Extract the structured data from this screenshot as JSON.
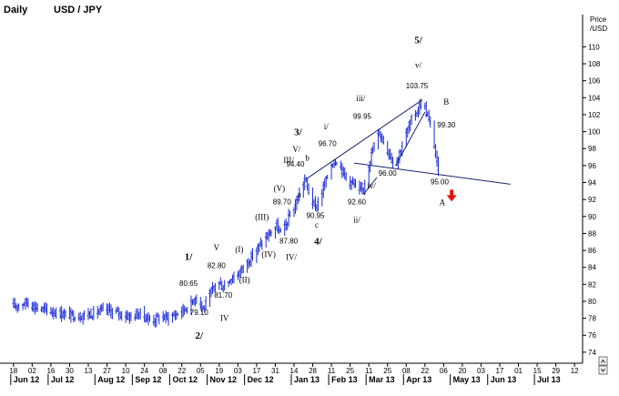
{
  "header": {
    "period": "Daily",
    "symbol": "USD / JPY"
  },
  "chart_data": {
    "type": "ohlc",
    "title": "USD / JPY",
    "period": "Daily",
    "ylabel_lines": [
      "Price",
      "/USD"
    ],
    "ylim": [
      72.7,
      113.8
    ],
    "yticks": [
      74,
      76,
      78,
      80,
      82,
      84,
      86,
      88,
      90,
      92,
      94,
      96,
      98,
      100,
      102,
      104,
      106,
      108,
      110
    ],
    "grid": false,
    "x_day_ticks": [
      {
        "label": "18",
        "day": 0
      },
      {
        "label": "02",
        "day": 14
      },
      {
        "label": "16",
        "day": 28
      },
      {
        "label": "30",
        "day": 42
      },
      {
        "label": "13",
        "day": 56
      },
      {
        "label": "27",
        "day": 70
      },
      {
        "label": "10",
        "day": 84
      },
      {
        "label": "24",
        "day": 98
      },
      {
        "label": "08",
        "day": 112
      },
      {
        "label": "22",
        "day": 126
      },
      {
        "label": "05",
        "day": 140
      },
      {
        "label": "19",
        "day": 154
      },
      {
        "label": "03",
        "day": 168
      },
      {
        "label": "17",
        "day": 182
      },
      {
        "label": "31",
        "day": 196
      },
      {
        "label": "14",
        "day": 210
      },
      {
        "label": "28",
        "day": 224
      },
      {
        "label": "11",
        "day": 238
      },
      {
        "label": "25",
        "day": 252
      },
      {
        "label": "11",
        "day": 266
      },
      {
        "label": "25",
        "day": 280
      },
      {
        "label": "08",
        "day": 294
      },
      {
        "label": "22",
        "day": 308
      },
      {
        "label": "06",
        "day": 322
      },
      {
        "label": "20",
        "day": 336
      },
      {
        "label": "03",
        "day": 350
      },
      {
        "label": "17",
        "day": 364
      },
      {
        "label": "01",
        "day": 378
      },
      {
        "label": "15",
        "day": 392
      },
      {
        "label": "29",
        "day": 406
      },
      {
        "label": "12",
        "day": 420
      }
    ],
    "x_month_labels": [
      {
        "label": "Jun 12",
        "day": 0
      },
      {
        "label": "Jul 12",
        "day": 28
      },
      {
        "label": "Aug 12",
        "day": 63
      },
      {
        "label": "Sep 12",
        "day": 91
      },
      {
        "label": "Oct 12",
        "day": 119
      },
      {
        "label": "Nov 12",
        "day": 147
      },
      {
        "label": "Dec 12",
        "day": 175
      },
      {
        "label": "Jan 13",
        "day": 210
      },
      {
        "label": "Feb 13",
        "day": 238
      },
      {
        "label": "Mar 13",
        "day": 266
      },
      {
        "label": "Apr 13",
        "day": 294
      },
      {
        "label": "May 13",
        "day": 329
      },
      {
        "label": "Jun 13",
        "day": 357
      },
      {
        "label": "Jul 13",
        "day": 392
      }
    ],
    "anchors": [
      [
        0,
        79.4
      ],
      [
        10,
        79.9
      ],
      [
        20,
        79.1
      ],
      [
        30,
        78.8
      ],
      [
        40,
        78.4
      ],
      [
        50,
        78.3
      ],
      [
        60,
        78.6
      ],
      [
        70,
        79.0
      ],
      [
        80,
        78.5
      ],
      [
        88,
        78.2
      ],
      [
        95,
        78.6
      ],
      [
        100,
        78.0
      ],
      [
        105,
        77.8
      ],
      [
        110,
        78.2
      ],
      [
        115,
        78.1
      ],
      [
        122,
        78.5
      ],
      [
        127,
        79.0
      ],
      [
        132,
        79.5
      ],
      [
        137,
        80.65
      ],
      [
        142,
        79.1
      ],
      [
        147,
        80.5
      ],
      [
        152,
        82.4
      ],
      [
        157,
        81.7
      ],
      [
        162,
        82.6
      ],
      [
        168,
        83.2
      ],
      [
        174,
        84.4
      ],
      [
        180,
        85.6
      ],
      [
        186,
        86.9
      ],
      [
        192,
        88.0
      ],
      [
        197,
        88.8
      ],
      [
        201,
        87.8
      ],
      [
        206,
        89.8
      ],
      [
        210,
        91.0
      ],
      [
        214,
        92.6
      ],
      [
        218,
        94.4
      ],
      [
        222,
        92.5
      ],
      [
        226,
        90.95
      ],
      [
        230,
        92.5
      ],
      [
        234,
        94.2
      ],
      [
        238,
        96.2
      ],
      [
        242,
        96.7
      ],
      [
        246,
        95.5
      ],
      [
        250,
        94.3
      ],
      [
        255,
        93.8
      ],
      [
        258,
        92.6
      ],
      [
        262,
        93.4
      ],
      [
        266,
        96.2
      ],
      [
        270,
        98.4
      ],
      [
        274,
        99.95
      ],
      [
        278,
        98.5
      ],
      [
        282,
        97.3
      ],
      [
        286,
        96.0
      ],
      [
        290,
        98.0
      ],
      [
        294,
        99.7
      ],
      [
        298,
        101.3
      ],
      [
        302,
        102.4
      ],
      [
        306,
        103.75
      ],
      [
        310,
        101.8
      ],
      [
        314,
        99.6
      ],
      [
        318,
        95.0
      ]
    ],
    "trendlines": [
      {
        "from": [
          219,
          94.4
        ],
        "to": [
          306,
          103.75
        ]
      },
      {
        "from": [
          286,
          96.0
        ],
        "to": [
          308,
          102.3
        ]
      },
      {
        "from": [
          262,
          92.6
        ],
        "to": [
          272,
          94.6
        ]
      },
      {
        "from": [
          255,
          96.3
        ],
        "to": [
          372,
          93.8
        ]
      }
    ],
    "price_labels": [
      {
        "text": "80.65",
        "day": 131,
        "price": 81.8
      },
      {
        "text": "79.10",
        "day": 139,
        "price": 78.4
      },
      {
        "text": "82.80",
        "day": 152,
        "price": 83.9
      },
      {
        "text": "81.70",
        "day": 157,
        "price": 80.4
      },
      {
        "text": "87.80",
        "day": 206,
        "price": 86.8
      },
      {
        "text": "89.70",
        "day": 201,
        "price": 91.4
      },
      {
        "text": "94.40",
        "day": 211,
        "price": 95.9
      },
      {
        "text": "90.95",
        "day": 226,
        "price": 89.8
      },
      {
        "text": "96.70",
        "day": 235,
        "price": 98.3
      },
      {
        "text": "92.60",
        "day": 257,
        "price": 91.4
      },
      {
        "text": "99.95",
        "day": 261,
        "price": 101.5
      },
      {
        "text": "96.00",
        "day": 280,
        "price": 94.8
      },
      {
        "text": "103.75",
        "day": 302,
        "price": 105.1
      },
      {
        "text": "99.30",
        "day": 324,
        "price": 100.5
      },
      {
        "text": "95.00",
        "day": 319,
        "price": 93.8
      }
    ],
    "wave_labels": [
      {
        "text": "1/",
        "day": 131,
        "price": 84.9,
        "style": "major"
      },
      {
        "text": "2/",
        "day": 139,
        "price": 75.6,
        "style": "major"
      },
      {
        "text": "3/",
        "day": 213,
        "price": 99.6,
        "style": "major"
      },
      {
        "text": "4/",
        "day": 228,
        "price": 86.7,
        "style": "major"
      },
      {
        "text": "5/",
        "day": 303,
        "price": 110.4,
        "style": "major"
      },
      {
        "text": "V",
        "day": 152,
        "price": 86.0,
        "style": "minor"
      },
      {
        "text": "IV",
        "day": 158,
        "price": 77.7,
        "style": "minor"
      },
      {
        "text": "(I)",
        "day": 169,
        "price": 85.8,
        "style": "minor"
      },
      {
        "text": "(II)",
        "day": 173,
        "price": 82.2,
        "style": "minor"
      },
      {
        "text": "(III)",
        "day": 186,
        "price": 89.6,
        "style": "minor"
      },
      {
        "text": "(IV)",
        "day": 191,
        "price": 85.2,
        "style": "minor"
      },
      {
        "text": "IV/",
        "day": 208,
        "price": 84.9,
        "style": "minor"
      },
      {
        "text": "(V)",
        "day": 199,
        "price": 93.0,
        "style": "minor"
      },
      {
        "text": "III/",
        "day": 206,
        "price": 96.3,
        "style": "minor"
      },
      {
        "text": "V/",
        "day": 212,
        "price": 97.6,
        "style": "minor"
      },
      {
        "text": "a",
        "day": 214,
        "price": 92.3,
        "style": "minor"
      },
      {
        "text": "b",
        "day": 220,
        "price": 96.6,
        "style": "minor"
      },
      {
        "text": "c",
        "day": 227,
        "price": 88.7,
        "style": "minor"
      },
      {
        "text": "i/",
        "day": 234,
        "price": 100.3,
        "style": "minor"
      },
      {
        "text": "ii/",
        "day": 257,
        "price": 89.3,
        "style": "minor"
      },
      {
        "text": "iii/",
        "day": 260,
        "price": 103.6,
        "style": "minor"
      },
      {
        "text": "iv/",
        "day": 268,
        "price": 93.3,
        "style": "minor"
      },
      {
        "text": "v/",
        "day": 303,
        "price": 107.5,
        "style": "minor"
      },
      {
        "text": "B",
        "day": 324,
        "price": 103.2,
        "style": "minor"
      },
      {
        "text": "A",
        "day": 321,
        "price": 91.3,
        "style": "minor"
      }
    ],
    "arrow": {
      "direction": "down",
      "day": 328,
      "price": 92.3,
      "color": "#e8140c"
    },
    "bar_color": "#1c2bd6",
    "line_color": "#1a2470"
  }
}
